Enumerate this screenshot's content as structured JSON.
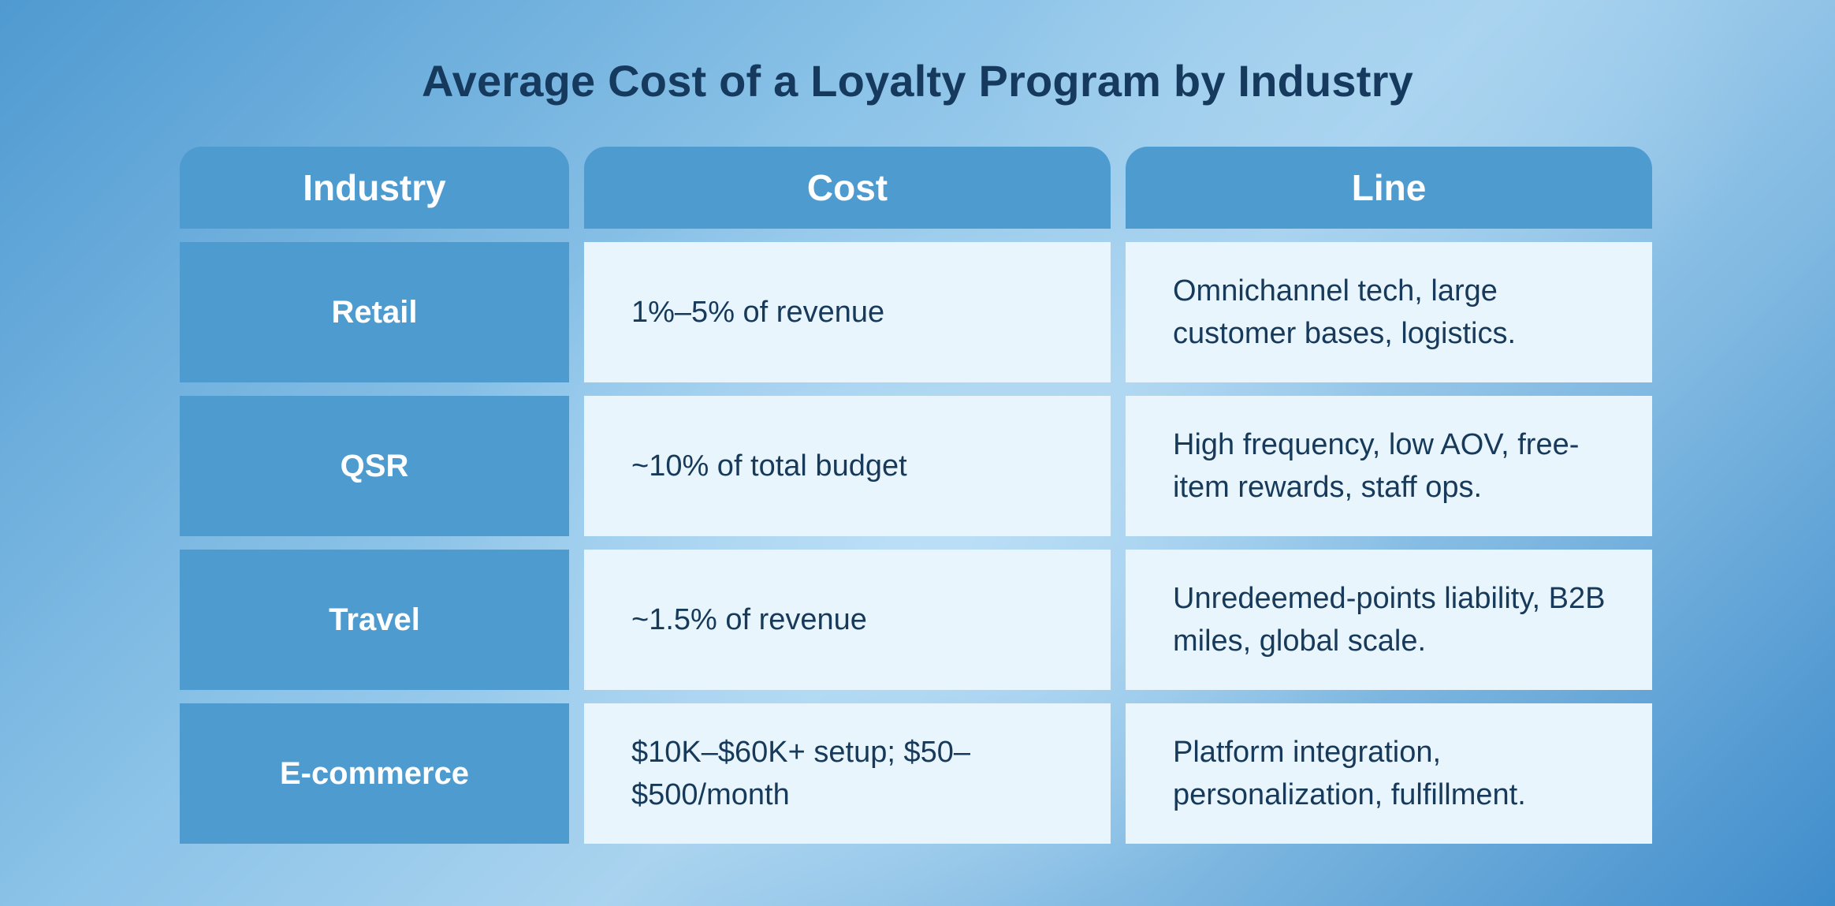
{
  "chart_data": {
    "type": "table",
    "title": "Average Cost of a Loyalty Program by Industry",
    "columns": [
      "Industry",
      "Cost",
      "Line"
    ],
    "rows": [
      {
        "industry": "Retail",
        "cost": "1%–5% of revenue",
        "line": "Omnichannel tech, large customer bases, logistics."
      },
      {
        "industry": "QSR",
        "cost": "~10% of total budget",
        "line": "High frequency, low AOV, free-item rewards, staff ops."
      },
      {
        "industry": "Travel",
        "cost": "~1.5% of revenue",
        "line": "Unredeemed-points liability, B2B miles, global scale."
      },
      {
        "industry": "E-commerce",
        "cost": "$10K–$60K+ setup; $50–$500/month",
        "line": "Platform integration, personalization, fulfillment."
      }
    ]
  },
  "colors": {
    "header_bg": "#4e9bd0",
    "cell_bg": "#e9f5fc",
    "title_text": "#163a5e",
    "body_text": "#17395a"
  }
}
